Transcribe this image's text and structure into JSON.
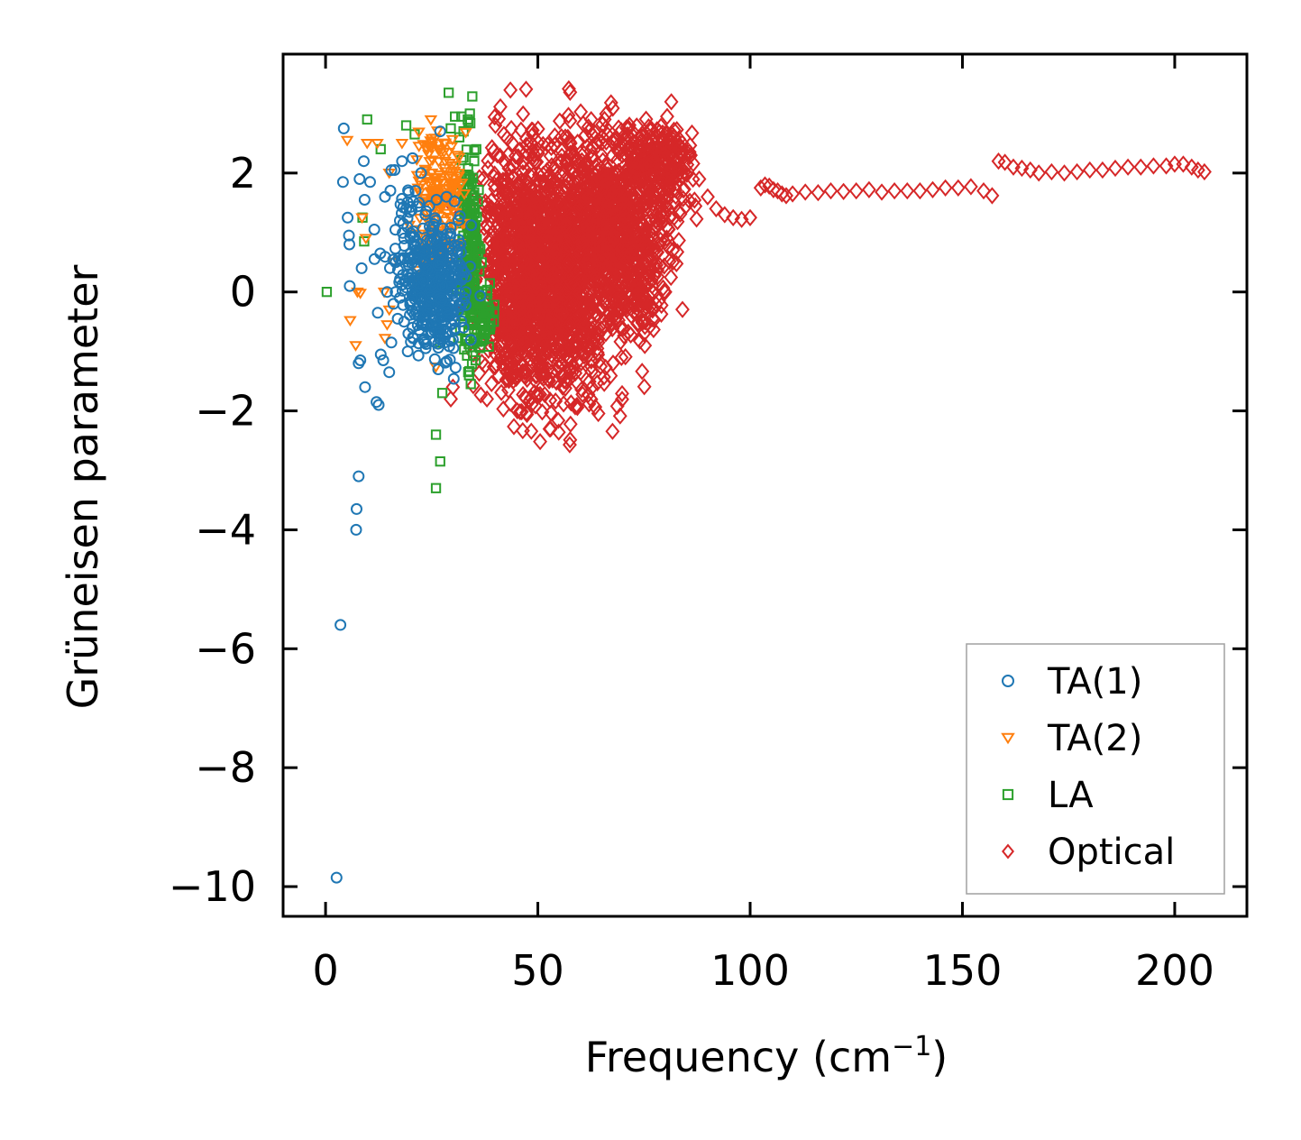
{
  "chart_data": {
    "type": "scatter",
    "title": "",
    "xlabel": "Frequency (cm",
    "xlabel_sup": "−1",
    "xlabel_close": ")",
    "ylabel": "Grüneisen parameter",
    "xlim": [
      -10,
      217
    ],
    "ylim": [
      -10.5,
      4.0
    ],
    "xticks": [
      0,
      50,
      100,
      150,
      200
    ],
    "xtick_labels": [
      "0",
      "50",
      "100",
      "150",
      "200"
    ],
    "yticks": [
      -10,
      -8,
      -6,
      -4,
      -2,
      0,
      2
    ],
    "ytick_labels": [
      "−10",
      "−8",
      "−6",
      "−4",
      "−2",
      "0",
      "2"
    ],
    "grid": false,
    "legend_position": "lower-right",
    "series": [
      {
        "name": "TA(1)",
        "marker": "circle",
        "color": "#1f77b4",
        "points": [
          [
            4.3,
            2.75
          ],
          [
            4.1,
            1.85
          ],
          [
            5.2,
            1.25
          ],
          [
            5.5,
            0.95
          ],
          [
            5.6,
            0.8
          ],
          [
            5.7,
            0.1
          ],
          [
            8.0,
            1.9
          ],
          [
            9.2,
            1.55
          ],
          [
            9.0,
            2.2
          ],
          [
            8.5,
            0.4
          ],
          [
            8.2,
            -1.15
          ],
          [
            7.8,
            -1.2
          ],
          [
            9.3,
            -1.6
          ],
          [
            12.0,
            -1.85
          ],
          [
            12.5,
            -1.9
          ],
          [
            13.0,
            -1.05
          ],
          [
            13.6,
            -1.15
          ],
          [
            15.0,
            -1.35
          ],
          [
            7.8,
            -3.1
          ],
          [
            7.3,
            -3.65
          ],
          [
            7.2,
            -4.0
          ],
          [
            3.5,
            -5.6
          ],
          [
            2.6,
            -9.85
          ],
          [
            10.5,
            1.85
          ],
          [
            12.3,
            -0.35
          ],
          [
            11.5,
            1.05
          ],
          [
            14.0,
            1.6
          ],
          [
            15.5,
            2.05
          ],
          [
            16.5,
            0.5
          ],
          [
            18.0,
            2.2
          ],
          [
            19.0,
            1.4
          ],
          [
            20.5,
            2.25
          ],
          [
            21.2,
            1.7
          ],
          [
            22.5,
            2.0
          ],
          [
            14.5,
            0.0
          ],
          [
            16.0,
            -0.2
          ],
          [
            17.5,
            -0.1
          ],
          [
            18.5,
            -0.5
          ],
          [
            19.5,
            -0.7
          ],
          [
            20.5,
            -0.6
          ],
          [
            17.0,
            -0.45
          ],
          [
            15.5,
            -0.85
          ],
          [
            21.0,
            0.8
          ],
          [
            22.0,
            1.5
          ],
          [
            23.5,
            1.3
          ],
          [
            24.5,
            1.1
          ],
          [
            26.0,
            1.2
          ],
          [
            27.0,
            2.7
          ],
          [
            28.5,
            1.6
          ],
          [
            29.5,
            0.6
          ],
          [
            30.5,
            0.3
          ],
          [
            31.5,
            -0.2
          ],
          [
            32.5,
            -0.6
          ],
          [
            33.0,
            0.0
          ],
          [
            30.0,
            -0.8
          ],
          [
            28.0,
            -0.85
          ],
          [
            26.5,
            -0.7
          ],
          [
            25.0,
            -0.55
          ],
          [
            24.0,
            -0.3
          ],
          [
            23.0,
            0.2
          ],
          [
            22.5,
            -0.1
          ],
          [
            21.5,
            0.4
          ],
          [
            19.5,
            0.3
          ],
          [
            18.5,
            0.9
          ],
          [
            17.5,
            1.2
          ],
          [
            16.5,
            0.0
          ],
          [
            20.0,
            0.55
          ],
          [
            25.5,
            0.9
          ],
          [
            27.5,
            0.1
          ],
          [
            29.0,
            -0.4
          ],
          [
            31.0,
            0.7
          ],
          [
            32.0,
            0.2
          ],
          [
            28.5,
            -0.3
          ],
          [
            26.5,
            0.45
          ]
        ],
        "clusters": [
          {
            "cx": 26.5,
            "cy": 0.05,
            "sx": 3.6,
            "sy": 0.55,
            "n": 330
          },
          {
            "cx": 21.0,
            "cy": 0.7,
            "sx": 3.4,
            "sy": 0.7,
            "n": 70
          }
        ]
      },
      {
        "name": "TA(2)",
        "marker": "triangle-down",
        "color": "#ff7f0e",
        "points": [
          [
            5.1,
            2.55
          ],
          [
            9.8,
            2.5
          ],
          [
            12.2,
            2.5
          ],
          [
            15.0,
            2.0
          ],
          [
            18.0,
            2.5
          ],
          [
            8.6,
            1.25
          ],
          [
            9.5,
            0.9
          ],
          [
            7.5,
            0.0
          ],
          [
            8.2,
            -0.02
          ],
          [
            5.8,
            -0.48
          ],
          [
            7.1,
            -0.9
          ],
          [
            14.5,
            -0.55
          ],
          [
            15.0,
            -0.3
          ],
          [
            13.8,
            0.0
          ],
          [
            16.0,
            0.5
          ],
          [
            14.0,
            -0.78
          ],
          [
            26.0,
            -1.26
          ],
          [
            22.0,
            2.45
          ],
          [
            24.0,
            2.4
          ],
          [
            25.0,
            2.45
          ],
          [
            27.0,
            2.4
          ],
          [
            29.0,
            2.35
          ],
          [
            31.0,
            2.3
          ]
        ],
        "clusters": [
          {
            "cx": 27.5,
            "cy": 1.7,
            "sx": 2.6,
            "sy": 0.45,
            "n": 130
          },
          {
            "cx": 25.0,
            "cy": 1.0,
            "sx": 2.5,
            "sy": 0.5,
            "n": 40
          }
        ]
      },
      {
        "name": "LA",
        "marker": "square",
        "color": "#2ca02c",
        "points": [
          [
            0.3,
            0.0
          ],
          [
            9.8,
            2.9
          ],
          [
            19.0,
            2.8
          ],
          [
            21.0,
            2.65
          ],
          [
            29.0,
            3.35
          ],
          [
            13.0,
            2.4
          ],
          [
            8.7,
            1.25
          ],
          [
            9.1,
            0.85
          ],
          [
            26.0,
            -2.4
          ],
          [
            27.0,
            -2.85
          ],
          [
            26.0,
            -3.3
          ],
          [
            27.5,
            -1.7
          ],
          [
            27.0,
            -0.85
          ],
          [
            30.5,
            2.95
          ],
          [
            32.0,
            2.95
          ],
          [
            33.5,
            2.9
          ],
          [
            34.0,
            3.0
          ],
          [
            31.5,
            2.6
          ],
          [
            32.5,
            2.7
          ],
          [
            35.5,
            2.4
          ],
          [
            33.8,
            -1.4
          ],
          [
            34.2,
            -1.55
          ],
          [
            29.5,
            2.75
          ]
        ],
        "clusters": [
          {
            "cx": 34.0,
            "cy": 0.7,
            "sx": 1.1,
            "sy": 0.9,
            "n": 220
          },
          {
            "cx": 37.5,
            "cy": -0.45,
            "sx": 1.1,
            "sy": 0.25,
            "n": 50
          }
        ]
      },
      {
        "name": "Optical",
        "marker": "diamond",
        "color": "#d62728",
        "points": [
          [
            102.5,
            1.75
          ],
          [
            103.5,
            1.8
          ],
          [
            104.5,
            1.78
          ],
          [
            105.5,
            1.72
          ],
          [
            106.5,
            1.7
          ],
          [
            107.5,
            1.65
          ],
          [
            108.5,
            1.62
          ],
          [
            110.0,
            1.65
          ],
          [
            113.0,
            1.68
          ],
          [
            116.0,
            1.67
          ],
          [
            119.0,
            1.7
          ],
          [
            122.0,
            1.69
          ],
          [
            125.0,
            1.7
          ],
          [
            128.0,
            1.72
          ],
          [
            131.0,
            1.68
          ],
          [
            134.0,
            1.7
          ],
          [
            137.0,
            1.7
          ],
          [
            140.0,
            1.7
          ],
          [
            143.0,
            1.72
          ],
          [
            146.0,
            1.75
          ],
          [
            149.0,
            1.75
          ],
          [
            152.0,
            1.77
          ],
          [
            155.0,
            1.7
          ],
          [
            157.0,
            1.62
          ],
          [
            158.5,
            2.2
          ],
          [
            160.0,
            2.18
          ],
          [
            162.0,
            2.1
          ],
          [
            164.0,
            2.08
          ],
          [
            166.0,
            2.05
          ],
          [
            168.0,
            2.0
          ],
          [
            171.0,
            2.02
          ],
          [
            174.0,
            2.0
          ],
          [
            177.0,
            2.02
          ],
          [
            180.0,
            2.05
          ],
          [
            183.0,
            2.05
          ],
          [
            186.0,
            2.08
          ],
          [
            189.0,
            2.1
          ],
          [
            192.0,
            2.1
          ],
          [
            195.0,
            2.12
          ],
          [
            198.0,
            2.12
          ],
          [
            200.0,
            2.15
          ],
          [
            202.0,
            2.15
          ],
          [
            204.0,
            2.1
          ],
          [
            205.5,
            2.05
          ],
          [
            207.0,
            2.02
          ],
          [
            82.0,
            2.6
          ],
          [
            84.0,
            2.5
          ],
          [
            86.0,
            2.3
          ],
          [
            88.0,
            1.9
          ],
          [
            90.0,
            1.6
          ],
          [
            92.0,
            1.4
          ],
          [
            94.0,
            1.3
          ],
          [
            96.0,
            1.25
          ],
          [
            98.0,
            1.22
          ],
          [
            100.0,
            1.25
          ],
          [
            29.5,
            -1.8
          ],
          [
            30.0,
            -1.6
          ],
          [
            40.0,
            2.8
          ],
          [
            42.0,
            2.65
          ],
          [
            44.0,
            2.5
          ],
          [
            66.0,
            -0.7
          ],
          [
            64.0,
            -0.95
          ],
          [
            75.0,
            -0.7
          ],
          [
            77.0,
            -0.45
          ],
          [
            78.5,
            -0.15
          ],
          [
            80.0,
            0.0
          ],
          [
            72.0,
            -0.4
          ],
          [
            70.0,
            -0.2
          ],
          [
            68.0,
            -0.4
          ]
        ],
        "clusters": [
          {
            "cx": 46.0,
            "cy": 0.35,
            "sx": 5.0,
            "sy": 1.05,
            "n": 800
          },
          {
            "cx": 56.0,
            "cy": 0.2,
            "sx": 6.5,
            "sy": 1.05,
            "n": 800
          },
          {
            "cx": 64.0,
            "cy": 1.2,
            "sx": 5.0,
            "sy": 0.85,
            "n": 450
          },
          {
            "cx": 73.0,
            "cy": 1.4,
            "sx": 5.0,
            "sy": 0.65,
            "n": 330
          },
          {
            "cx": 79.5,
            "cy": 2.15,
            "sx": 3.2,
            "sy": 0.35,
            "n": 180
          },
          {
            "cx": 73.0,
            "cy": 0.1,
            "sx": 3.8,
            "sy": 0.45,
            "n": 140
          }
        ]
      }
    ]
  }
}
